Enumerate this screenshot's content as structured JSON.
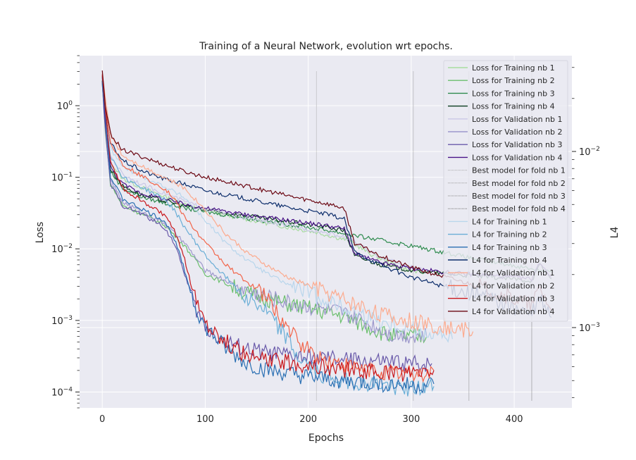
{
  "chart_data": {
    "type": "line",
    "title": "Training of a Neural Network, evolution wrt epochs.",
    "xlabel": "Epochs",
    "ylabel_left": "Loss",
    "ylabel_right": "L4",
    "xlim": [
      -22,
      456
    ],
    "ylim_left": [
      6e-05,
      5
    ],
    "ylim_right": [
      0.00035,
      0.035
    ],
    "yscale": "log",
    "grid": true,
    "legend_position": "upper right",
    "x_ticks": [
      0,
      100,
      200,
      300,
      400
    ],
    "x_tick_labels": [
      "0",
      "100",
      "200",
      "300",
      "400"
    ],
    "left_ticks": [
      1,
      0.1,
      0.01,
      0.001,
      0.0001
    ],
    "left_tick_labels": [
      {
        "base": "10",
        "exp": "0"
      },
      {
        "base": "10",
        "exp": "−1"
      },
      {
        "base": "10",
        "exp": "−2"
      },
      {
        "base": "10",
        "exp": "−3"
      },
      {
        "base": "10",
        "exp": "−4"
      }
    ],
    "right_ticks": [
      0.01,
      0.001
    ],
    "right_tick_labels": [
      {
        "base": "10",
        "exp": "−2"
      },
      {
        "base": "10",
        "exp": "−3"
      }
    ],
    "best_model_epochs": [
      208,
      302,
      356,
      417
    ],
    "legend": [
      {
        "label": "Loss for Training nb 1",
        "color": "#a8dca0"
      },
      {
        "label": "Loss for Training nb 2",
        "color": "#6bbf6d"
      },
      {
        "label": "Loss for Training nb 3",
        "color": "#2e8b4e"
      },
      {
        "label": "Loss for Training nb 4",
        "color": "#0b3d1e"
      },
      {
        "label": "Loss for Validation nb 1",
        "color": "#c9c7e6"
      },
      {
        "label": "Loss for Validation nb 2",
        "color": "#9d98cc"
      },
      {
        "label": "Loss for Validation nb 3",
        "color": "#6a5aaa"
      },
      {
        "label": "Loss for Validation nb 4",
        "color": "#4a1488"
      },
      {
        "label": "Best model for fold nb 1",
        "color": "#aaaaaa"
      },
      {
        "label": "Best model for fold nb 2",
        "color": "#999999"
      },
      {
        "label": "Best model for fold nb 3",
        "color": "#888888"
      },
      {
        "label": "Best model for fold nb 4",
        "color": "#777777"
      },
      {
        "label": "L4 for Training nb 1",
        "color": "#b9d6ec"
      },
      {
        "label": "L4 for Training nb 2",
        "color": "#6aaed6"
      },
      {
        "label": "L4 for Training nb 3",
        "color": "#2a6fb3"
      },
      {
        "label": "L4 for Training nb 4",
        "color": "#0c2d6b"
      },
      {
        "label": "L4 for Validation nb 1",
        "color": "#fcab8f"
      },
      {
        "label": "L4 for Validation nb 2",
        "color": "#f2654a"
      },
      {
        "label": "L4 for Validation nb 3",
        "color": "#c8171c"
      },
      {
        "label": "L4 for Validation nb 4",
        "color": "#6b0712"
      }
    ],
    "series": [
      {
        "axis": "left",
        "color": "#a8dca0",
        "x": [
          0,
          3,
          8,
          20,
          40,
          60,
          80,
          100,
          140,
          180,
          208,
          240,
          260,
          290,
          312
        ],
        "y": [
          2.5,
          0.6,
          0.16,
          0.095,
          0.07,
          0.054,
          0.042,
          0.034,
          0.026,
          0.02,
          0.017,
          0.013,
          0.0085,
          0.0055,
          0.0045
        ]
      },
      {
        "axis": "left",
        "color": "#6bbf6d",
        "x": [
          0,
          3,
          8,
          20,
          40,
          60,
          80,
          100,
          140,
          180,
          230,
          260,
          280,
          302,
          315
        ],
        "y": [
          2.0,
          0.45,
          0.08,
          0.04,
          0.03,
          0.022,
          0.011,
          0.0045,
          0.0024,
          0.0017,
          0.0012,
          0.0008,
          0.0006,
          0.0006,
          0.0006
        ]
      },
      {
        "axis": "left",
        "color": "#2e8b4e",
        "x": [
          0,
          3,
          8,
          20,
          40,
          60,
          80,
          100,
          140,
          180,
          220,
          260,
          300,
          340,
          356,
          380,
          420,
          436
        ],
        "y": [
          2.2,
          0.5,
          0.12,
          0.07,
          0.052,
          0.044,
          0.037,
          0.033,
          0.027,
          0.022,
          0.018,
          0.014,
          0.011,
          0.0085,
          0.0075,
          0.0065,
          0.0052,
          0.0048
        ]
      },
      {
        "axis": "left",
        "color": "#0b3d1e",
        "x": [
          0,
          3,
          8,
          20,
          40,
          60,
          80,
          100,
          140,
          180,
          220,
          235,
          245,
          270,
          300,
          340,
          380,
          417,
          425,
          436
        ],
        "y": [
          2.3,
          0.55,
          0.13,
          0.075,
          0.055,
          0.047,
          0.04,
          0.035,
          0.029,
          0.024,
          0.02,
          0.018,
          0.008,
          0.006,
          0.005,
          0.0044,
          0.004,
          0.0036,
          0.006,
          0.0038
        ]
      },
      {
        "axis": "left",
        "color": "#c9c7e6",
        "x": [
          0,
          3,
          8,
          20,
          40,
          60,
          80,
          100,
          140,
          180,
          208,
          240,
          260,
          290,
          312
        ],
        "y": [
          2.6,
          0.7,
          0.2,
          0.11,
          0.078,
          0.06,
          0.046,
          0.036,
          0.027,
          0.021,
          0.018,
          0.014,
          0.009,
          0.006,
          0.005
        ]
      },
      {
        "axis": "left",
        "color": "#9d98cc",
        "x": [
          0,
          3,
          8,
          20,
          40,
          60,
          80,
          100,
          140,
          180,
          230,
          260,
          280,
          302,
          315
        ],
        "y": [
          2.1,
          0.5,
          0.09,
          0.045,
          0.032,
          0.023,
          0.012,
          0.005,
          0.0026,
          0.0018,
          0.0013,
          0.0009,
          0.00065,
          0.00062,
          0.0006
        ]
      },
      {
        "axis": "left",
        "color": "#6a5aaa",
        "x": [
          0,
          3,
          8,
          20,
          40,
          60,
          70,
          80,
          90,
          100,
          120,
          140,
          160,
          200,
          240,
          280,
          302,
          320
        ],
        "y": [
          2.0,
          0.45,
          0.08,
          0.04,
          0.03,
          0.02,
          0.012,
          0.0045,
          0.0015,
          0.0008,
          0.0005,
          0.0004,
          0.00035,
          0.0003,
          0.00028,
          0.00026,
          0.00025,
          0.00025
        ]
      },
      {
        "axis": "left",
        "color": "#4a1488",
        "x": [
          0,
          3,
          8,
          20,
          40,
          60,
          80,
          100,
          140,
          180,
          220,
          235,
          245,
          270,
          300,
          340,
          380,
          417,
          425,
          436
        ],
        "y": [
          2.4,
          0.6,
          0.14,
          0.08,
          0.058,
          0.05,
          0.042,
          0.037,
          0.03,
          0.025,
          0.021,
          0.019,
          0.0085,
          0.0064,
          0.0053,
          0.0046,
          0.0042,
          0.0038,
          0.0065,
          0.004
        ]
      },
      {
        "axis": "left",
        "color": "#b9d6ec",
        "x": [
          0,
          3,
          8,
          20,
          40,
          60,
          80,
          100,
          120,
          140,
          160,
          180,
          208,
          240,
          280,
          312,
          330,
          340
        ],
        "y": [
          2.8,
          0.9,
          0.25,
          0.14,
          0.1,
          0.075,
          0.052,
          0.025,
          0.012,
          0.007,
          0.0045,
          0.0032,
          0.0022,
          0.0014,
          0.0009,
          0.0007,
          0.0006,
          0.00055
        ]
      },
      {
        "axis": "left",
        "color": "#6aaed6",
        "x": [
          0,
          3,
          8,
          20,
          40,
          60,
          70,
          80,
          100,
          120,
          140,
          160,
          175,
          190,
          210,
          240,
          280,
          310,
          322
        ],
        "y": [
          2.5,
          0.8,
          0.2,
          0.1,
          0.07,
          0.05,
          0.035,
          0.02,
          0.008,
          0.004,
          0.0022,
          0.0013,
          0.0007,
          0.0003,
          0.00018,
          0.00014,
          0.00012,
          0.00011,
          0.00012
        ]
      },
      {
        "axis": "left",
        "color": "#2a6fb3",
        "x": [
          0,
          3,
          8,
          20,
          40,
          60,
          70,
          80,
          90,
          100,
          120,
          140,
          160,
          200,
          240,
          280,
          302,
          322
        ],
        "y": [
          2.2,
          0.7,
          0.1,
          0.05,
          0.035,
          0.025,
          0.014,
          0.005,
          0.0016,
          0.0008,
          0.0004,
          0.00025,
          0.0002,
          0.00016,
          0.00014,
          0.00013,
          0.00012,
          0.00013
        ]
      },
      {
        "axis": "left",
        "color": "#0c2d6b",
        "x": [
          0,
          3,
          8,
          20,
          40,
          60,
          80,
          100,
          140,
          180,
          220,
          235,
          245,
          270,
          300,
          340,
          380,
          417,
          425,
          436
        ],
        "y": [
          2.7,
          0.85,
          0.3,
          0.17,
          0.12,
          0.095,
          0.08,
          0.065,
          0.05,
          0.038,
          0.03,
          0.026,
          0.009,
          0.006,
          0.004,
          0.0028,
          0.002,
          0.0012,
          0.002,
          0.0011
        ]
      },
      {
        "axis": "left",
        "color": "#fcab8f",
        "x": [
          0,
          3,
          8,
          20,
          40,
          60,
          80,
          100,
          120,
          140,
          160,
          180,
          208,
          240,
          280,
          312,
          340,
          360
        ],
        "y": [
          3.0,
          1.2,
          0.4,
          0.2,
          0.14,
          0.1,
          0.07,
          0.035,
          0.016,
          0.009,
          0.0058,
          0.004,
          0.0028,
          0.0018,
          0.0011,
          0.0009,
          0.0008,
          0.0007
        ]
      },
      {
        "axis": "left",
        "color": "#f2654a",
        "x": [
          0,
          3,
          8,
          20,
          40,
          60,
          70,
          80,
          100,
          120,
          140,
          160,
          175,
          190,
          210,
          240,
          280,
          310,
          322
        ],
        "y": [
          2.8,
          1.0,
          0.3,
          0.15,
          0.1,
          0.07,
          0.05,
          0.028,
          0.012,
          0.006,
          0.0035,
          0.002,
          0.001,
          0.0005,
          0.0003,
          0.00022,
          0.00019,
          0.00018,
          0.0002
        ]
      },
      {
        "axis": "left",
        "color": "#c8171c",
        "x": [
          0,
          3,
          8,
          20,
          40,
          60,
          70,
          80,
          90,
          100,
          120,
          140,
          160,
          200,
          240,
          280,
          302,
          322
        ],
        "y": [
          2.6,
          0.9,
          0.16,
          0.07,
          0.045,
          0.03,
          0.018,
          0.007,
          0.002,
          0.001,
          0.0005,
          0.00032,
          0.00028,
          0.00024,
          0.0002,
          0.00019,
          0.00018,
          0.0002
        ]
      },
      {
        "axis": "left",
        "color": "#6b0712",
        "x": [
          0,
          3,
          8,
          20,
          40,
          60,
          80,
          100,
          140,
          180,
          220,
          235,
          245,
          270,
          300,
          340,
          380,
          417,
          425,
          436
        ],
        "y": [
          3.0,
          1.0,
          0.4,
          0.24,
          0.19,
          0.15,
          0.12,
          0.1,
          0.075,
          0.055,
          0.042,
          0.037,
          0.012,
          0.008,
          0.0055,
          0.0038,
          0.0026,
          0.0016,
          0.0028,
          0.0014
        ]
      }
    ]
  }
}
